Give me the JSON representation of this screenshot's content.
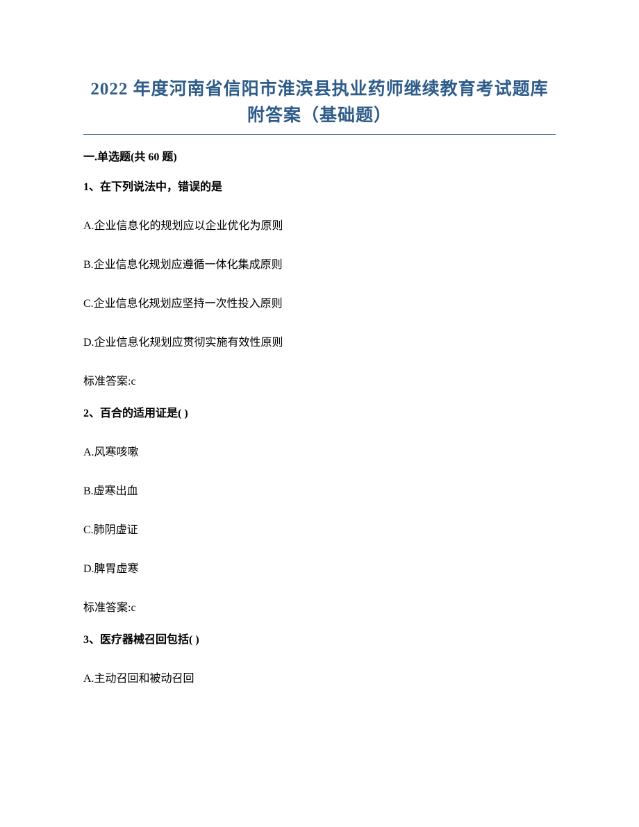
{
  "title": {
    "line1": "2022 年度河南省信阳市淮滨县执业药师继续教育考试题库",
    "line2": "附答案（基础题）",
    "color": "#2e5c8a",
    "fontsize": 25
  },
  "section_header": "一.单选题(共 60 题)",
  "questions": [
    {
      "stem": "1、在下列说法中，错误的是",
      "options": [
        "A.企业信息化的规划应以企业优化为原则",
        "B.企业信息化规划应遵循一体化集成原则",
        "C.企业信息化规划应坚持一次性投入原则",
        "D.企业信息化规划应贯彻实施有效性原则"
      ],
      "answer": "标准答案:c"
    },
    {
      "stem": "2、百合的适用证是( )",
      "options": [
        "A.风寒咳嗽",
        "B.虚寒出血",
        "C.肺阴虚证",
        "D.脾胃虚寒"
      ],
      "answer": "标准答案:c"
    },
    {
      "stem": "3、医疗器械召回包括( )",
      "options": [
        "A.主动召回和被动召回"
      ],
      "answer": null
    }
  ],
  "styling": {
    "body_fontsize": 16,
    "body_color": "#000000",
    "background_color": "#ffffff",
    "divider_color": "#2e5c8a"
  }
}
